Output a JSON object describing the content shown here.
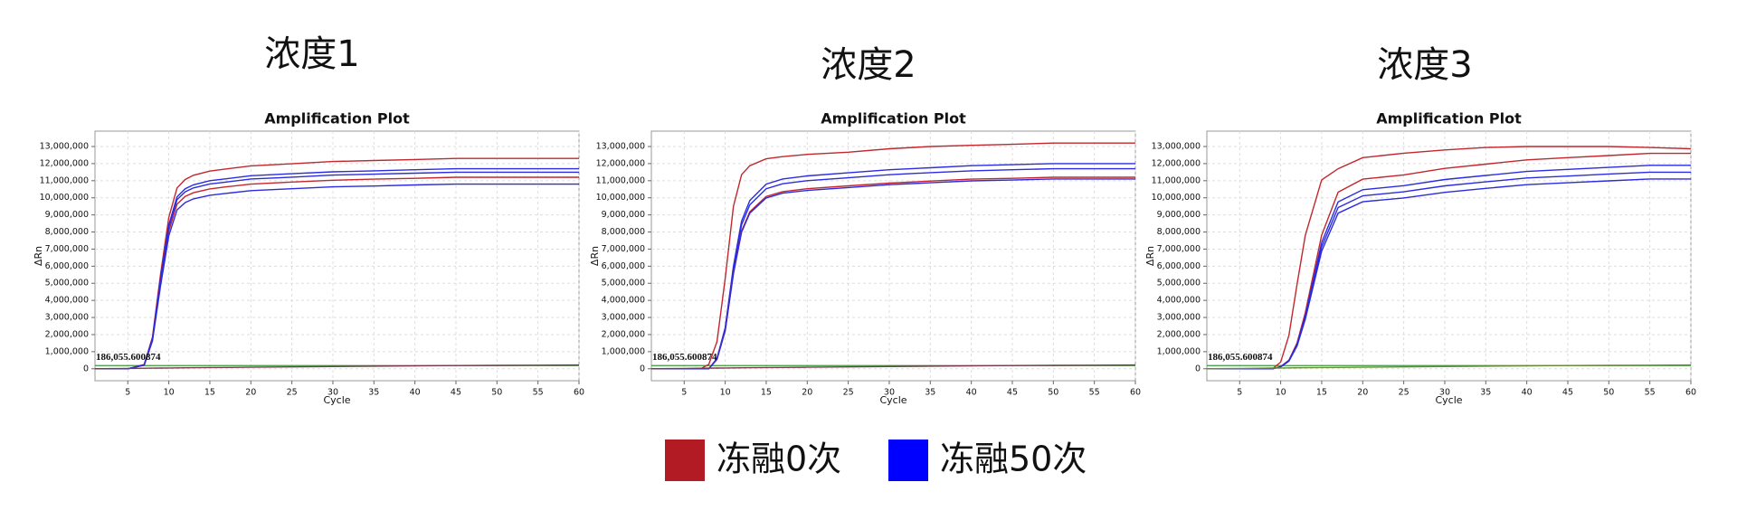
{
  "chart_data": [
    {
      "type": "line",
      "heading": "浓度1",
      "title": "Amplification Plot",
      "x_label": "Cycle",
      "y_label": "ΔRn",
      "x": [
        1,
        3,
        5,
        7,
        8,
        9,
        10,
        11,
        12,
        13,
        15,
        17,
        20,
        25,
        30,
        35,
        40,
        45,
        50,
        55,
        60
      ],
      "xlim": [
        1,
        60
      ],
      "xticks": [
        5,
        10,
        15,
        20,
        25,
        30,
        35,
        40,
        45,
        50,
        55,
        60
      ],
      "ylim": [
        -700000,
        13900000
      ],
      "yticks": [
        0,
        {
          "value": 1000000,
          "label": "1,000,000"
        },
        {
          "value": 2000000,
          "label": "2,000,000"
        },
        {
          "value": 3000000,
          "label": "3,000,000"
        },
        {
          "value": 4000000,
          "label": "4,000,000"
        },
        {
          "value": 5000000,
          "label": "5,000,000"
        },
        {
          "value": 6000000,
          "label": "6,000,000"
        },
        {
          "value": 7000000,
          "label": "7,000,000"
        },
        {
          "value": 8000000,
          "label": "8,000,000"
        },
        {
          "value": 9000000,
          "label": "9,000,000"
        },
        {
          "value": 10000000,
          "label": "10,000,000"
        },
        {
          "value": 11000000,
          "label": "11,000,000"
        },
        {
          "value": 12000000,
          "label": "12,000,000"
        },
        {
          "value": 13000000,
          "label": "13,000,000"
        }
      ],
      "grid": true,
      "threshold": {
        "value": 186055.600874,
        "label": "186,055.600874",
        "color": "#3a9a3a"
      },
      "series": [
        {
          "color": "#c1272d",
          "values": [
            0,
            0,
            0,
            250000,
            1850000,
            5540000,
            8860000,
            10580000,
            11070000,
            11320000,
            11560000,
            11690000,
            11870000,
            11990000,
            12120000,
            12180000,
            12240000,
            12300000,
            12300000,
            12300000,
            12300000
          ]
        },
        {
          "color": "#c1272d",
          "values": [
            0,
            0,
            0,
            220000,
            1680000,
            5040000,
            8060000,
            9630000,
            10080000,
            10300000,
            10520000,
            10640000,
            10800000,
            10920000,
            11030000,
            11090000,
            11140000,
            11200000,
            11200000,
            11200000,
            11200000
          ]
        },
        {
          "color": "#2b2be0",
          "values": [
            0,
            0,
            0,
            230000,
            1750000,
            5260000,
            8420000,
            10060000,
            10530000,
            10760000,
            11000000,
            11110000,
            11290000,
            11410000,
            11520000,
            11580000,
            11640000,
            11700000,
            11700000,
            11700000,
            11700000
          ]
        },
        {
          "color": "#2b2be0",
          "values": [
            0,
            0,
            0,
            230000,
            1720000,
            5170000,
            8280000,
            9890000,
            10350000,
            10580000,
            10810000,
            10920000,
            11100000,
            11210000,
            11330000,
            11380000,
            11440000,
            11500000,
            11500000,
            11500000,
            11500000
          ]
        },
        {
          "color": "#2b2be0",
          "values": [
            0,
            0,
            0,
            210000,
            1620000,
            4860000,
            7780000,
            9290000,
            9720000,
            9940000,
            10150000,
            10260000,
            10420000,
            10530000,
            10640000,
            10690000,
            10750000,
            10800000,
            10800000,
            10800000,
            10800000
          ]
        },
        {
          "color": "#7a3b50",
          "values": [
            0,
            10000,
            20000,
            30000,
            35000,
            40000,
            45000,
            50000,
            55000,
            60000,
            70000,
            80000,
            90000,
            110000,
            130000,
            150000,
            170000,
            190000,
            200000,
            210000,
            220000
          ]
        }
      ]
    },
    {
      "type": "line",
      "heading": "浓度2",
      "title": "Amplification Plot",
      "x_label": "Cycle",
      "y_label": "ΔRn",
      "x": [
        1,
        3,
        5,
        7,
        8,
        9,
        10,
        11,
        12,
        13,
        15,
        17,
        20,
        25,
        30,
        35,
        40,
        45,
        50,
        55,
        60
      ],
      "xlim": [
        1,
        60
      ],
      "xticks": [
        5,
        10,
        15,
        20,
        25,
        30,
        35,
        40,
        45,
        50,
        55,
        60
      ],
      "ylim": [
        -700000,
        13900000
      ],
      "yticks": [
        0,
        {
          "value": 1000000,
          "label": "1,000,000"
        },
        {
          "value": 2000000,
          "label": "2,000,000"
        },
        {
          "value": 3000000,
          "label": "3,000,000"
        },
        {
          "value": 4000000,
          "label": "4,000,000"
        },
        {
          "value": 5000000,
          "label": "5,000,000"
        },
        {
          "value": 6000000,
          "label": "6,000,000"
        },
        {
          "value": 7000000,
          "label": "7,000,000"
        },
        {
          "value": 8000000,
          "label": "8,000,000"
        },
        {
          "value": 9000000,
          "label": "9,000,000"
        },
        {
          "value": 10000000,
          "label": "10,000,000"
        },
        {
          "value": 11000000,
          "label": "11,000,000"
        },
        {
          "value": 12000000,
          "label": "12,000,000"
        },
        {
          "value": 13000000,
          "label": "13,000,000"
        }
      ],
      "grid": true,
      "threshold": {
        "value": 186055.600874,
        "label": "186,055.600874",
        "color": "#3a9a3a"
      },
      "series": [
        {
          "color": "#c1272d",
          "values": [
            0,
            0,
            0,
            0,
            260000,
            1580000,
            5280000,
            9500000,
            11350000,
            11880000,
            12280000,
            12410000,
            12540000,
            12670000,
            12870000,
            13000000,
            13070000,
            13130000,
            13200000,
            13200000,
            13200000
          ]
        },
        {
          "color": "#2b2be0",
          "values": [
            0,
            0,
            0,
            0,
            0,
            600000,
            2400000,
            6000000,
            8640000,
            9840000,
            10800000,
            11100000,
            11280000,
            11460000,
            11640000,
            11760000,
            11880000,
            11940000,
            12000000,
            12000000,
            12000000
          ]
        },
        {
          "color": "#2b2be0",
          "values": [
            0,
            0,
            0,
            0,
            0,
            590000,
            2340000,
            5850000,
            8420000,
            9590000,
            10530000,
            10820000,
            11000000,
            11170000,
            11350000,
            11470000,
            11580000,
            11640000,
            11700000,
            11700000,
            11700000
          ]
        },
        {
          "color": "#c1272d",
          "values": [
            0,
            0,
            0,
            0,
            0,
            560000,
            2240000,
            5600000,
            8060000,
            9180000,
            10080000,
            10360000,
            10530000,
            10700000,
            10860000,
            10980000,
            11090000,
            11140000,
            11200000,
            11200000,
            11200000
          ]
        },
        {
          "color": "#2b2be0",
          "values": [
            0,
            0,
            0,
            0,
            0,
            550000,
            2220000,
            5550000,
            7990000,
            9100000,
            9990000,
            10270000,
            10430000,
            10600000,
            10770000,
            10880000,
            10990000,
            11040000,
            11100000,
            11100000,
            11100000
          ]
        },
        {
          "color": "#7a3b50",
          "values": [
            0,
            10000,
            20000,
            30000,
            35000,
            40000,
            45000,
            50000,
            55000,
            60000,
            70000,
            80000,
            90000,
            110000,
            130000,
            150000,
            170000,
            190000,
            200000,
            210000,
            220000
          ]
        }
      ]
    },
    {
      "type": "line",
      "heading": "浓度3",
      "title": "Amplification Plot",
      "x_label": "Cycle",
      "y_label": "ΔRn",
      "x": [
        1,
        3,
        5,
        7,
        8,
        9,
        10,
        11,
        12,
        13,
        15,
        17,
        20,
        25,
        30,
        35,
        40,
        45,
        50,
        55,
        60
      ],
      "xlim": [
        1,
        60
      ],
      "xticks": [
        5,
        10,
        15,
        20,
        25,
        30,
        35,
        40,
        45,
        50,
        55,
        60
      ],
      "ylim": [
        -700000,
        13900000
      ],
      "yticks": [
        0,
        {
          "value": 1000000,
          "label": "1,000,000"
        },
        {
          "value": 2000000,
          "label": "2,000,000"
        },
        {
          "value": 3000000,
          "label": "3,000,000"
        },
        {
          "value": 4000000,
          "label": "4,000,000"
        },
        {
          "value": 5000000,
          "label": "5,000,000"
        },
        {
          "value": 6000000,
          "label": "6,000,000"
        },
        {
          "value": 7000000,
          "label": "7,000,000"
        },
        {
          "value": 8000000,
          "label": "8,000,000"
        },
        {
          "value": 9000000,
          "label": "9,000,000"
        },
        {
          "value": 10000000,
          "label": "10,000,000"
        },
        {
          "value": 11000000,
          "label": "11,000,000"
        },
        {
          "value": 12000000,
          "label": "12,000,000"
        },
        {
          "value": 13000000,
          "label": "13,000,000"
        }
      ],
      "grid": true,
      "threshold": {
        "value": 186055.600874,
        "label": "186,055.600874",
        "color": "#3a9a3a"
      },
      "series": [
        {
          "color": "#c1272d",
          "values": [
            0,
            0,
            0,
            0,
            0,
            0,
            390000,
            1950000,
            4940000,
            7800000,
            11050000,
            11700000,
            12350000,
            12610000,
            12800000,
            12940000,
            13000000,
            13000000,
            13000000,
            12940000,
            12870000
          ]
        },
        {
          "color": "#c1272d",
          "values": [
            0,
            0,
            0,
            0,
            0,
            0,
            130000,
            500000,
            1510000,
            3280000,
            7810000,
            10330000,
            11090000,
            11340000,
            11720000,
            11970000,
            12220000,
            12350000,
            12470000,
            12600000,
            12600000
          ]
        },
        {
          "color": "#2b2be0",
          "values": [
            0,
            0,
            0,
            0,
            0,
            0,
            120000,
            480000,
            1430000,
            3090000,
            7380000,
            9760000,
            10470000,
            10710000,
            11070000,
            11310000,
            11540000,
            11660000,
            11780000,
            11900000,
            11900000
          ]
        },
        {
          "color": "#2b2be0",
          "values": [
            0,
            0,
            0,
            0,
            0,
            0,
            115000,
            460000,
            1380000,
            2990000,
            7130000,
            9430000,
            10120000,
            10350000,
            10700000,
            10930000,
            11160000,
            11270000,
            11390000,
            11500000,
            11500000
          ]
        },
        {
          "color": "#2b2be0",
          "values": [
            0,
            0,
            0,
            0,
            0,
            0,
            110000,
            440000,
            1330000,
            2890000,
            6880000,
            9100000,
            9770000,
            9990000,
            10320000,
            10550000,
            10770000,
            10880000,
            10990000,
            11100000,
            11100000
          ]
        },
        {
          "color": "#6a8a3a",
          "values": [
            0,
            10000,
            20000,
            30000,
            35000,
            40000,
            45000,
            50000,
            55000,
            60000,
            70000,
            80000,
            90000,
            110000,
            130000,
            150000,
            170000,
            190000,
            200000,
            210000,
            220000
          ]
        }
      ]
    }
  ],
  "legend": [
    {
      "label": "冻融0次",
      "color": "#b31b24"
    },
    {
      "label": "冻融50次",
      "color": "#0000ff"
    }
  ]
}
